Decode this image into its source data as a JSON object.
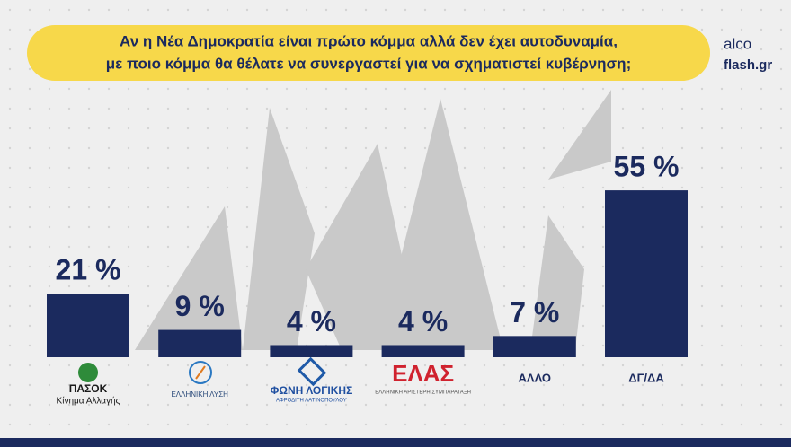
{
  "chart_data": {
    "type": "bar",
    "title": [
      "Αν η Νέα Δημοκρατία είναι πρώτο κόμμα αλλά δεν έχει αυτοδυναμία,",
      "με ποιο κόμμα θα θέλατε να συνεργαστεί για να σχηματιστεί κυβέρνηση;"
    ],
    "source": [
      "alco",
      "flash.gr"
    ],
    "categories": [
      "ΠΑΣΟΚ",
      "ΕΛΛΗΝΙΚΗ ΛΥΣΗ",
      "ΦΩΝΗ ΛΟΓΙΚΗΣ",
      "ΕΛΑΣ",
      "ΑΛΛΟ",
      "ΔΓ/ΔΑ"
    ],
    "category_notes": [
      "Κίνημα Αλλαγής",
      null,
      "ΑΦΡΟΔΙΤΗ ΛΑΤΙΝΟΠΟΥΛΟΥ",
      "ΕΛΛΗΝΙΚΗ ΑΡΙΣΤΕΡΗ ΣΥΜΠΑΡΑΤΑΞΗ",
      null,
      null
    ],
    "values": [
      21,
      9,
      4,
      4,
      7,
      55
    ],
    "value_labels": [
      "21 %",
      "9 %",
      "4 %",
      "4 %",
      "7 %",
      "55 %"
    ],
    "color": "#1b2a5e"
  }
}
